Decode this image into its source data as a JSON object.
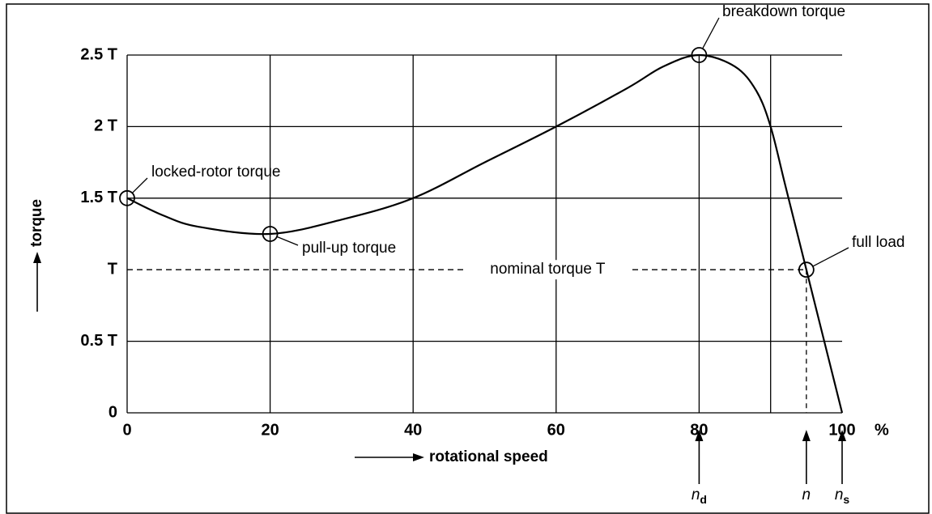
{
  "chart_data": {
    "type": "line",
    "x": [
      0,
      5,
      10,
      20,
      30,
      40,
      50,
      60,
      70,
      75,
      80,
      85,
      88,
      90,
      92,
      95,
      98,
      100
    ],
    "series": [
      {
        "color": "#000000",
        "values": [
          1.5,
          1.38,
          1.3,
          1.25,
          1.35,
          1.5,
          1.75,
          2.0,
          2.27,
          2.42,
          2.5,
          2.42,
          2.25,
          2.0,
          1.6,
          1.0,
          0.4,
          0
        ]
      }
    ],
    "xlim": [
      0,
      100
    ],
    "xticks": [
      0,
      20,
      40,
      60,
      80,
      {
        "value": 90,
        "label": null
      },
      100
    ],
    "x_unit": "%",
    "ylim": [
      0,
      2.5
    ],
    "yticks": [
      0,
      {
        "value": 0.5,
        "label": "0.5 T"
      },
      {
        "value": 1,
        "label": "T"
      },
      {
        "value": 1.5,
        "label": "1.5 T"
      },
      {
        "value": 2,
        "label": "2 T"
      },
      {
        "value": 2.5,
        "label": "2.5 T"
      }
    ],
    "xlabel": "rotational speed",
    "ylabel": "torque",
    "grid": true,
    "annotations": [
      "locked-rotor torque",
      "pull-up torque",
      "breakdown torque",
      "full load"
    ],
    "nominal_label": "nominal torque T",
    "speed_markers": [
      {
        "label": "n",
        "sub": "d",
        "x": 80
      },
      {
        "label": "n",
        "x": 95
      },
      {
        "label": "n",
        "sub": "s",
        "x": 100
      }
    ]
  }
}
